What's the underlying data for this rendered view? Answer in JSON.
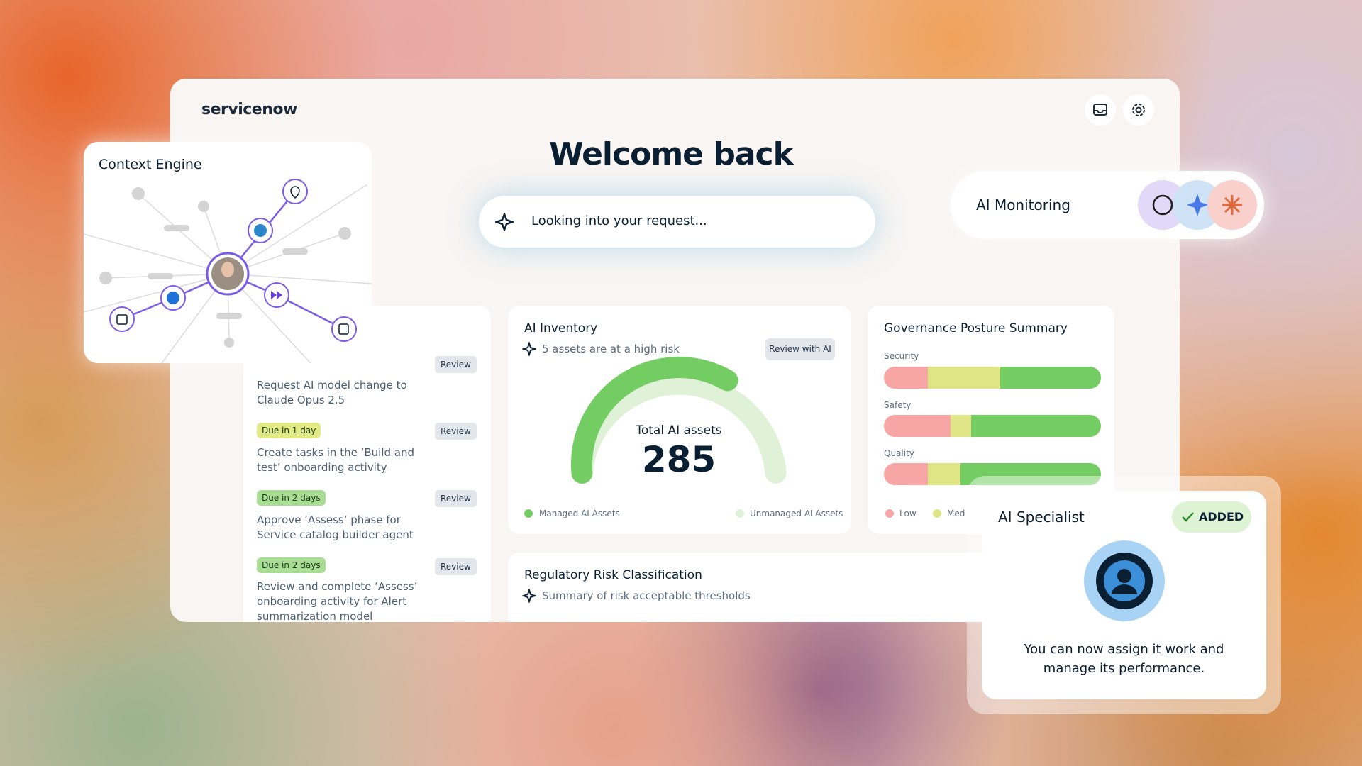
{
  "header": {
    "logo": "servicenow"
  },
  "welcome": "Welcome back",
  "search": "Looking into your request...",
  "context_engine": {
    "title": "Context Engine"
  },
  "ai_monitoring": {
    "title": "AI Monitoring"
  },
  "tasks": [
    {
      "text": "Request AI model change to Claude Opus 2.5",
      "action": "Review"
    },
    {
      "badge": "Due in 1 day",
      "text": "Create tasks in the ‘Build and test’ onboarding activity",
      "action": "Review"
    },
    {
      "badge": "Due in 2 days",
      "text": "Approve ‘Assess’ phase for Service catalog builder agent",
      "action": "Review"
    },
    {
      "badge": "Due in 2 days",
      "text": "Review and complete ‘Assess’ onboarding activity for Alert summarization model",
      "action": "Review"
    }
  ],
  "ai_inventory": {
    "title": "AI Inventory",
    "subtitle": "5 assets are at a high risk",
    "button": "Review with AI",
    "gauge_label": "Total AI assets",
    "total": "285",
    "legend": [
      "Managed AI Assets",
      "Unmanaged AI Assets"
    ]
  },
  "governance": {
    "title": "Governance Posture Summary",
    "rows": [
      "Security",
      "Safety",
      "Quality"
    ],
    "legend": [
      "Low",
      "Med"
    ]
  },
  "regulatory": {
    "title": "Regulatory Risk Classification",
    "subtitle": "Summary of risk acceptable thresholds"
  },
  "ai_specialist": {
    "title": "AI Specialist",
    "status": "ADDED",
    "message": "You can now assign it work and manage its performance."
  }
}
